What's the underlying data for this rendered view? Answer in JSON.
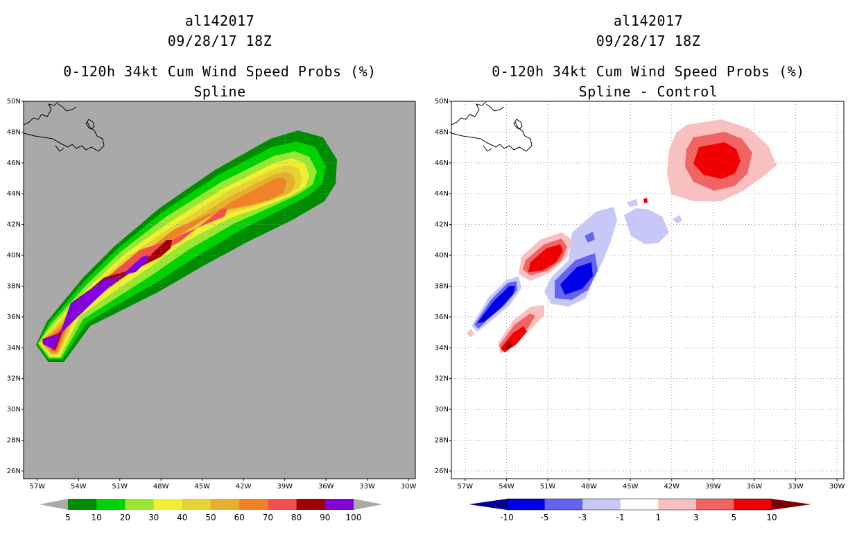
{
  "left_panel": {
    "storm_id": "al142017",
    "datetime": "09/28/17 18Z",
    "product": "0-120h 34kt Cum Wind Speed Probs (%)",
    "subtitle": "Spline",
    "background_color": "#a9a9a9",
    "colorbar": {
      "labels": [
        "5",
        "10",
        "20",
        "30",
        "40",
        "50",
        "60",
        "70",
        "80",
        "90",
        "100"
      ],
      "colors": [
        "#008c00",
        "#00d200",
        "#9be632",
        "#f0f032",
        "#e6d232",
        "#e6af2d",
        "#f08228",
        "#f05050",
        "#a00000",
        "#8200dc"
      ],
      "end_color": "#a9a9a9"
    }
  },
  "right_panel": {
    "storm_id": "al142017",
    "datetime": "09/28/17 18Z",
    "product": "0-120h 34kt Cum Wind Speed Probs (%)",
    "subtitle": "Spline - Control",
    "background_color": "#ffffff",
    "colorbar": {
      "labels": [
        "-10",
        "-5",
        "-3",
        "-1",
        "1",
        "3",
        "5",
        "10"
      ],
      "colors": [
        "#0000e6",
        "#6464f0",
        "#c8c8f8",
        "#ffffff",
        "#f8c0c0",
        "#f06464",
        "#f00000"
      ],
      "end_low": "#000096",
      "end_high": "#780000"
    }
  },
  "map": {
    "lat_labels": [
      "50N",
      "48N",
      "46N",
      "44N",
      "42N",
      "40N",
      "38N",
      "36N",
      "34N",
      "32N",
      "30N",
      "28N",
      "26N"
    ],
    "lat_values": [
      50,
      48,
      46,
      44,
      42,
      40,
      38,
      36,
      34,
      32,
      30,
      28,
      26
    ],
    "lon_labels": [
      "57W",
      "54W",
      "51W",
      "48W",
      "45W",
      "42W",
      "39W",
      "36W",
      "33W",
      "30W"
    ],
    "lon_values": [
      -57,
      -54,
      -51,
      -48,
      -45,
      -42,
      -39,
      -36,
      -33,
      -30
    ],
    "lat_range": [
      25.5,
      50
    ],
    "lon_range": [
      -58,
      -29.5
    ]
  }
}
